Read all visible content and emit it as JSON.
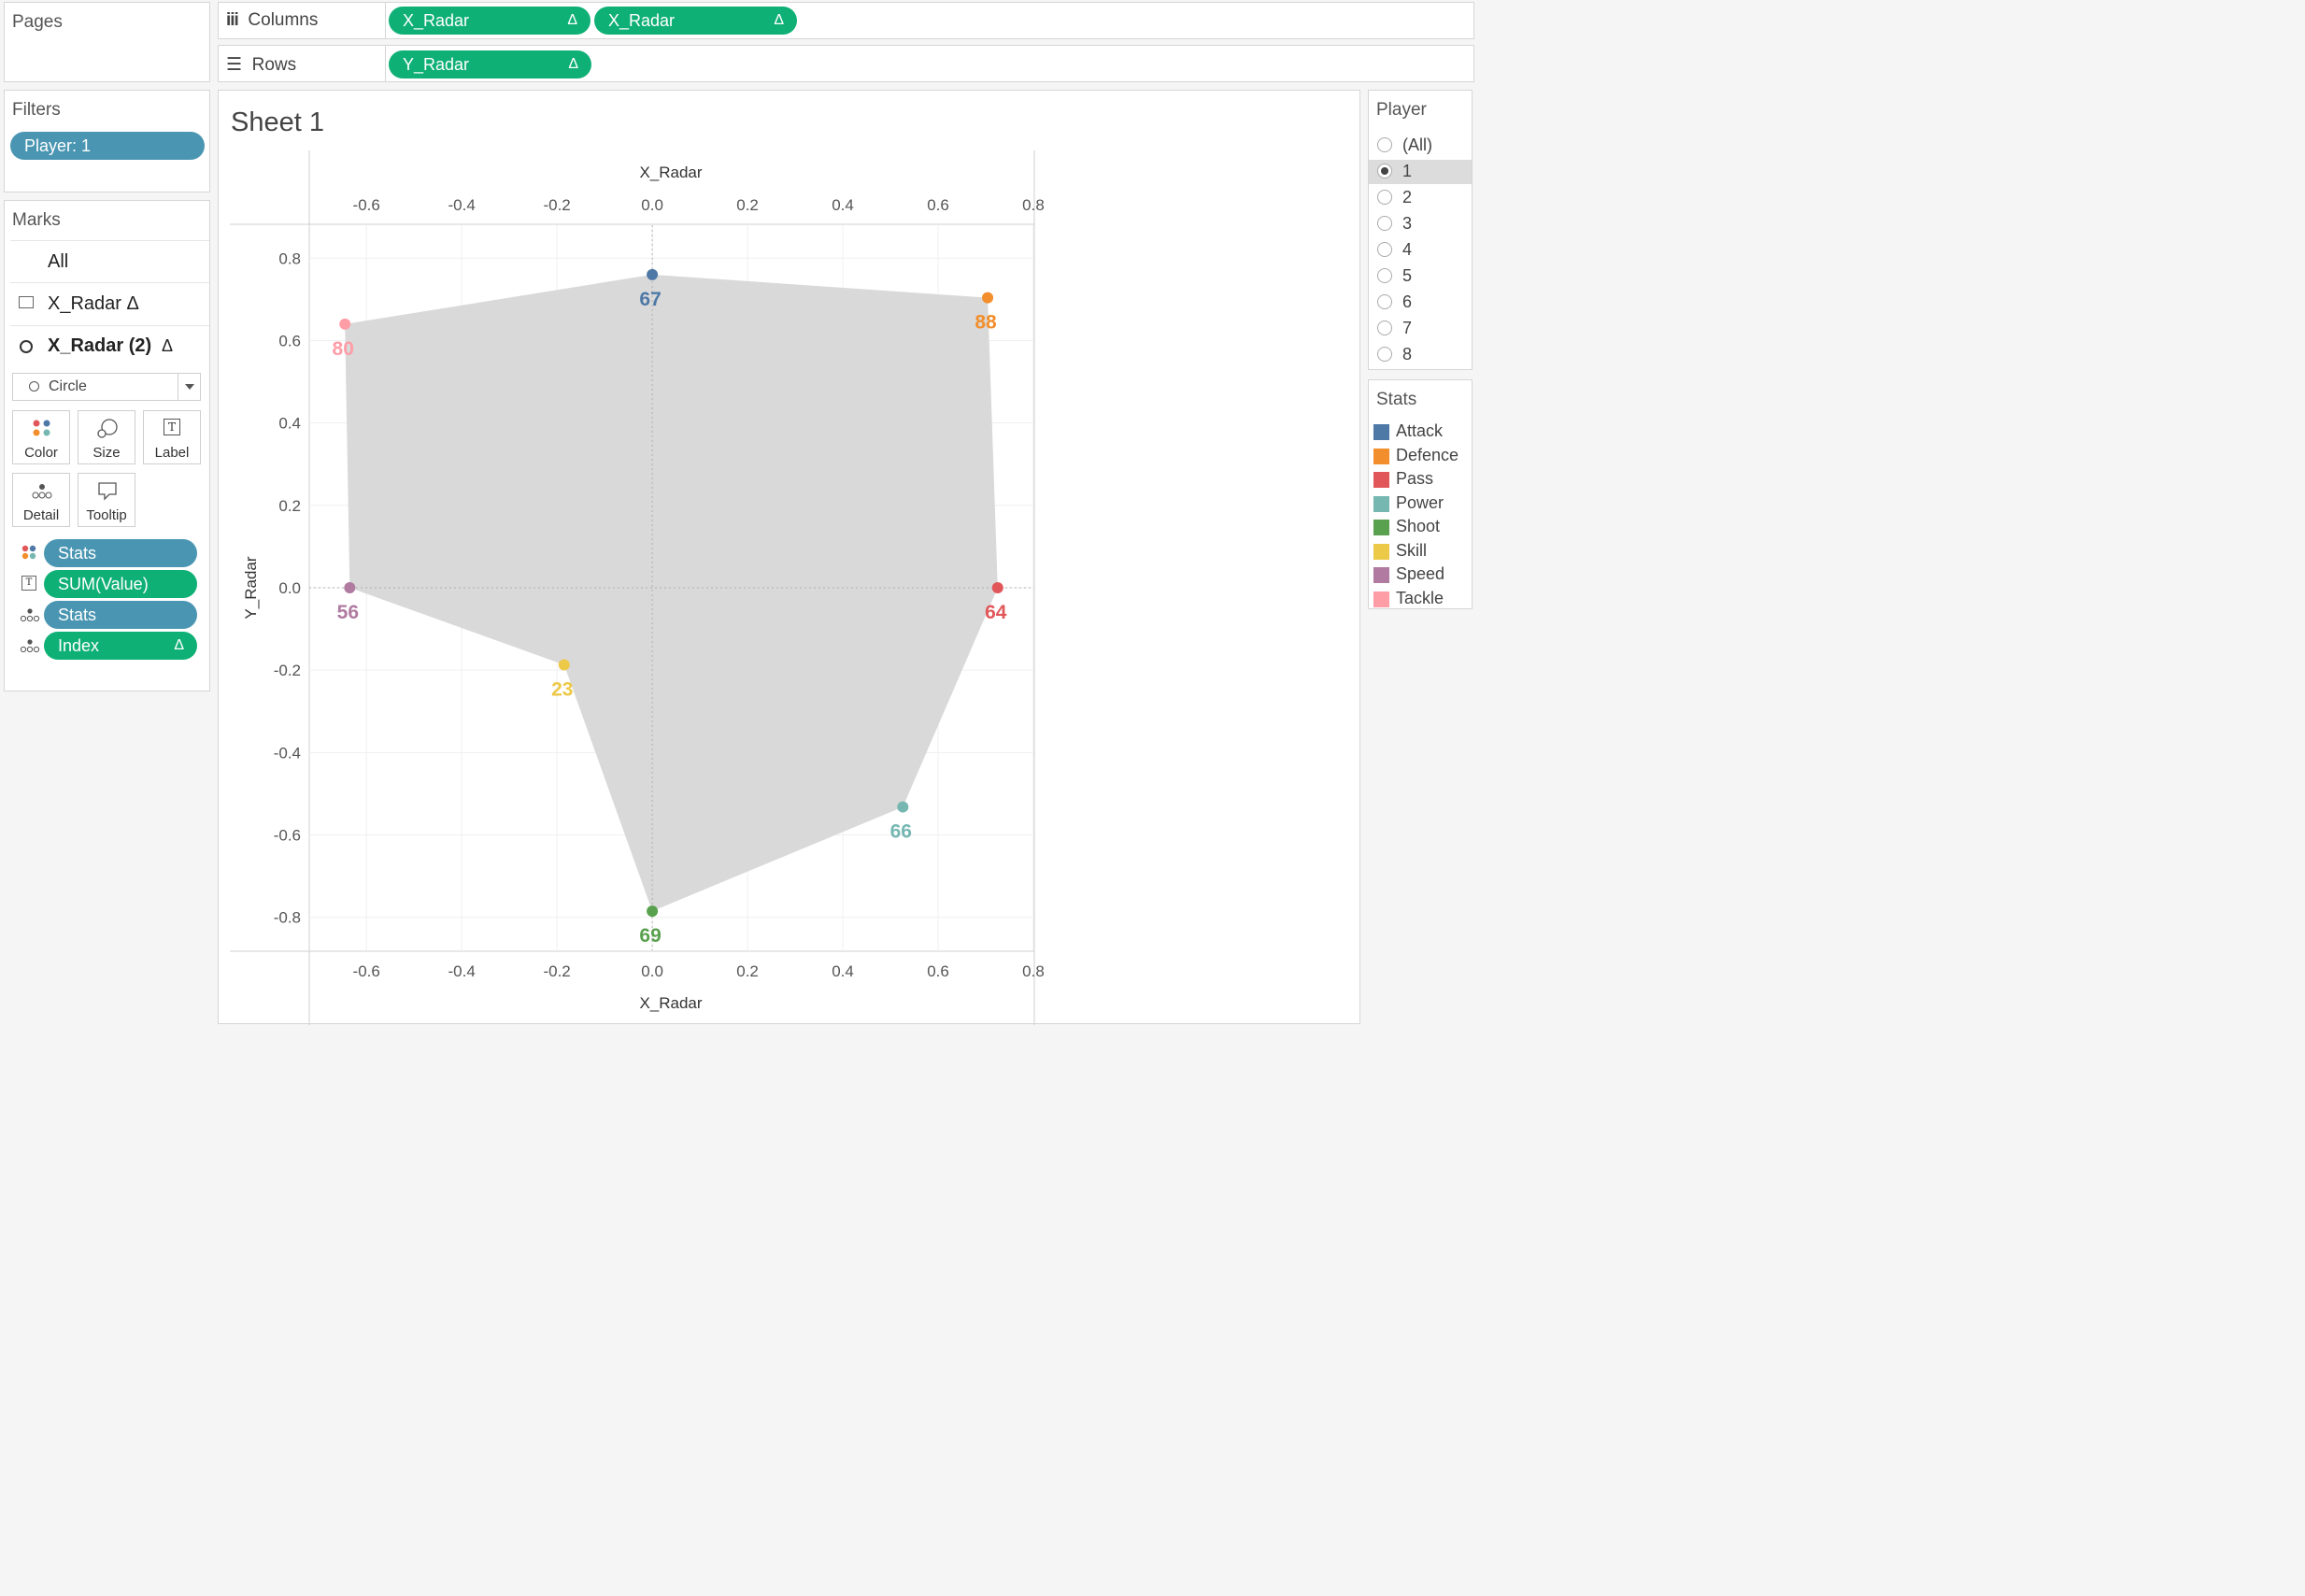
{
  "pages": {
    "title": "Pages"
  },
  "shelves": {
    "columns_label": "Columns",
    "rows_label": "Rows",
    "columns_pills": [
      "X_Radar",
      "X_Radar"
    ],
    "rows_pills": [
      "Y_Radar"
    ],
    "delta": "Δ"
  },
  "filters": {
    "title": "Filters",
    "pill": "Player: 1"
  },
  "marks": {
    "title": "Marks",
    "all": "All",
    "layer1": "X_Radar Δ",
    "layer2": "X_Radar (2)",
    "layer2_delta": "Δ",
    "mark_type": "Circle",
    "buttons": {
      "color": "Color",
      "size": "Size",
      "label": "Label",
      "detail": "Detail",
      "tooltip": "Tooltip"
    },
    "label_icon": "T",
    "fields": [
      {
        "name": "Stats",
        "kind": "color",
        "pill": "blue"
      },
      {
        "name": "SUM(Value)",
        "kind": "label",
        "pill": "green"
      },
      {
        "name": "Stats",
        "kind": "detail",
        "pill": "blue"
      },
      {
        "name": "Index",
        "kind": "detail",
        "pill": "green",
        "delta": "Δ"
      }
    ]
  },
  "sheet": {
    "title": "Sheet 1"
  },
  "player_filter": {
    "title": "Player",
    "options": [
      "(All)",
      "1",
      "2",
      "3",
      "4",
      "5",
      "6",
      "7",
      "8"
    ],
    "selected": "1"
  },
  "stats_legend": {
    "title": "Stats",
    "items": [
      {
        "name": "Attack",
        "color": "#4e79a7"
      },
      {
        "name": "Defence",
        "color": "#f28e2b"
      },
      {
        "name": "Pass",
        "color": "#e15759"
      },
      {
        "name": "Power",
        "color": "#76b7b2"
      },
      {
        "name": "Shoot",
        "color": "#59a14f"
      },
      {
        "name": "Skill",
        "color": "#edc948"
      },
      {
        "name": "Speed",
        "color": "#b07aa1"
      },
      {
        "name": "Tackle",
        "color": "#ff9da7"
      }
    ]
  },
  "chart_data": {
    "type": "scatter",
    "xlabel": "X_Radar",
    "ylabel": "Y_Radar",
    "xlim": [
      -0.72,
      0.8
    ],
    "ylim": [
      -0.88,
      0.88
    ],
    "xticks": [
      -0.6,
      -0.4,
      -0.2,
      0.0,
      0.2,
      0.4,
      0.6,
      0.8
    ],
    "xtick_labels": [
      "-0.6",
      "-0.4",
      "-0.2",
      "0.0",
      "0.2",
      "0.4",
      "0.6",
      "0.8"
    ],
    "yticks": [
      0.8,
      0.6,
      0.4,
      0.2,
      0.0,
      -0.2,
      -0.4,
      -0.6,
      -0.8
    ],
    "ytick_labels": [
      "0.8",
      "0.6",
      "0.4",
      "0.2",
      "0.0",
      "-0.2",
      "-0.4",
      "-0.6",
      "-0.8"
    ],
    "polygon_color": "#d9d9d9",
    "points": [
      {
        "stat": "Attack",
        "x": 0.0,
        "y": 0.76,
        "value": "67",
        "color": "#4e79a7"
      },
      {
        "stat": "Defence",
        "x": 0.704,
        "y": 0.704,
        "value": "88",
        "color": "#f28e2b"
      },
      {
        "stat": "Pass",
        "x": 0.725,
        "y": 0.0,
        "value": "64",
        "color": "#e15759"
      },
      {
        "stat": "Power",
        "x": 0.526,
        "y": -0.532,
        "value": "66",
        "color": "#76b7b2"
      },
      {
        "stat": "Shoot",
        "x": 0.0,
        "y": -0.785,
        "value": "69",
        "color": "#59a14f"
      },
      {
        "stat": "Skill",
        "x": -0.185,
        "y": -0.187,
        "value": "23",
        "color": "#edc948"
      },
      {
        "stat": "Speed",
        "x": -0.635,
        "y": 0.0,
        "value": "56",
        "color": "#b07aa1"
      },
      {
        "stat": "Tackle",
        "x": -0.645,
        "y": 0.64,
        "value": "80",
        "color": "#ff9da7"
      }
    ]
  }
}
